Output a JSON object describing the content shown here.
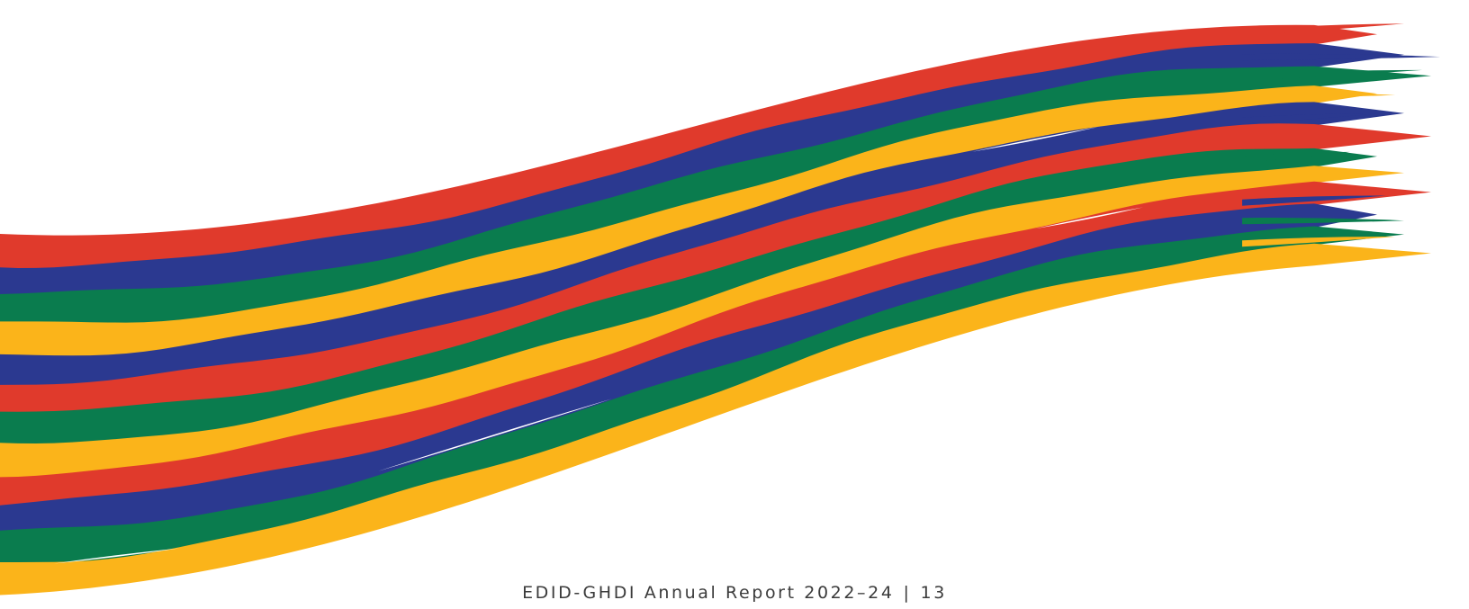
{
  "footer": {
    "report_title": "EDID-GHDI Annual Report 2022–24",
    "separator": "|",
    "page_number": "13"
  },
  "colors": {
    "background": "#ffffff",
    "red": "#e03a2c",
    "blue": "#2b3990",
    "green": "#0a7c4e",
    "yellow": "#fbb41a",
    "footer_text": "#3b3b3b"
  },
  "graphic": {
    "description_icon": "brush-stroke-ribbon-icon",
    "stripe_order_top_to_bottom": [
      "red",
      "blue",
      "green",
      "yellow",
      "blue",
      "red",
      "green",
      "yellow",
      "red",
      "blue",
      "green",
      "yellow"
    ]
  }
}
